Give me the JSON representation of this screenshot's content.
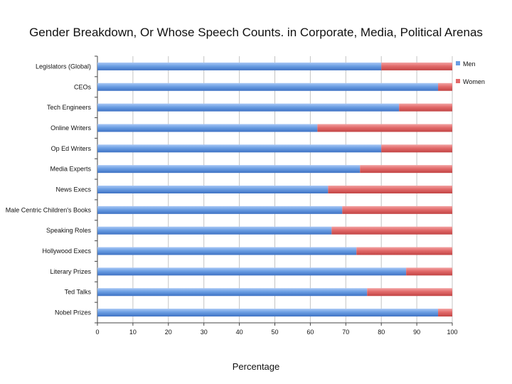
{
  "chart_data": {
    "type": "bar",
    "orientation": "horizontal",
    "stacked": true,
    "title": "Gender Breakdown, Or Whose Speech Counts. in Corporate, Media, Political Arenas",
    "xlabel": "Percentage",
    "ylabel": "",
    "xlim": [
      0,
      100
    ],
    "xticks": [
      0,
      10,
      20,
      30,
      40,
      50,
      60,
      70,
      80,
      90,
      100
    ],
    "grid": true,
    "legend_position": "top-right",
    "categories": [
      "Legislators (Global)",
      "CEOs",
      "Tech Engineers",
      "Online Writers",
      "Op Ed Writers",
      "Media Experts",
      "News Execs",
      "Male Centric Children's Books",
      "Speaking Roles",
      "Hollywood Execs",
      "Literary Prizes",
      "Ted Talks",
      "Nobel Prizes"
    ],
    "series": [
      {
        "name": "Men",
        "color": "#6b9ee3",
        "values": [
          80,
          96,
          85,
          62,
          80,
          74,
          65,
          69,
          66,
          73,
          87,
          76,
          96
        ]
      },
      {
        "name": "Women",
        "color": "#e26a6a",
        "values": [
          20,
          4,
          15,
          38,
          20,
          26,
          35,
          31,
          34,
          27,
          13,
          24,
          4
        ]
      }
    ]
  }
}
